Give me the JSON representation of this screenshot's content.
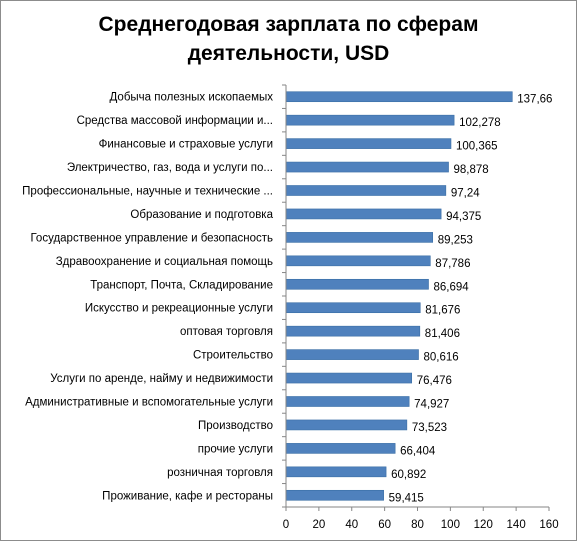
{
  "chart_data": {
    "type": "bar",
    "orientation": "horizontal",
    "title_line1": "Среднегодовая зарплата по сферам",
    "title_line2": "деятельности, USD",
    "categories": [
      "Добыча полезных ископаемых",
      "Средства массовой информации и...",
      "Финансовые и страховые услуги",
      "Электричество,  газ, вода и услуги по...",
      "Профессиональные, научные и технические ...",
      "Образование и подготовка",
      "Государственное управление и безопасность",
      "Здравоохранение  и социальная помощь",
      "Транспорт, Почта, Складирование",
      "Искусство и рекреационные  услуги",
      "оптовая торговля",
      "Строительство",
      "Услуги по аренде,  найму и недвижимости",
      "Административные  и вспомогательные услуги",
      "Производство",
      "прочие услуги",
      "розничная торговля",
      "Проживание,  кафе и рестораны"
    ],
    "values": [
      137.66,
      102.278,
      100.365,
      98.878,
      97.24,
      94.375,
      89.253,
      87.786,
      86.694,
      81.676,
      81.406,
      80.616,
      76.476,
      74.927,
      73.523,
      66.404,
      60.892,
      59.415
    ],
    "data_labels": [
      "137,66",
      "102,278",
      "100,365",
      "98,878",
      "97,24",
      "94,375",
      "89,253",
      "87,786",
      "86,694",
      "81,676",
      "81,406",
      "80,616",
      "76,476",
      "74,927",
      "73,523",
      "66,404",
      "60,892",
      "59,415"
    ],
    "xlim": [
      0,
      160
    ],
    "x_ticks": [
      "0",
      "20",
      "40",
      "60",
      "80",
      "100",
      "120",
      "140",
      "160"
    ],
    "xlabel": "",
    "ylabel": "",
    "grid": false,
    "legend": "none",
    "bar_color": "#4f81bd"
  }
}
